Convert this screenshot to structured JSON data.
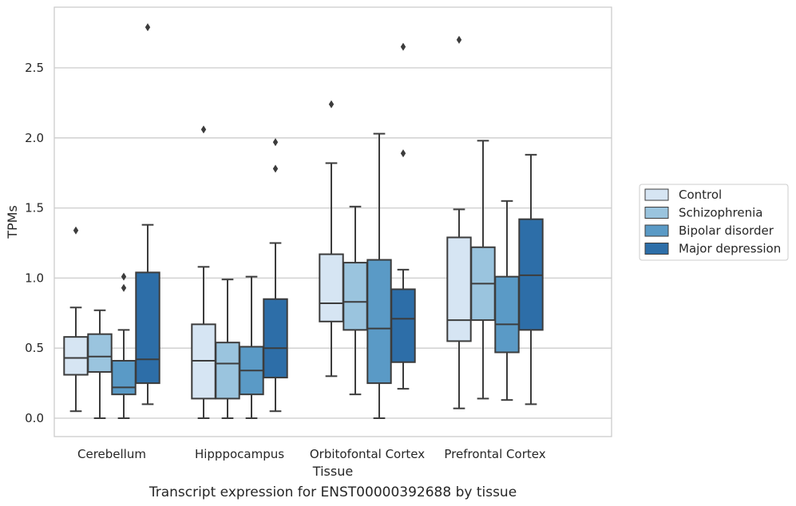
{
  "caption": "Transcript expression for ENST00000392688 by tissue",
  "chart_data": {
    "type": "boxplot",
    "xlabel": "Tissue",
    "ylabel": "TPMs",
    "ylim": [
      -0.13,
      2.95
    ],
    "yticks": [
      0.0,
      0.5,
      1.0,
      1.5,
      2.0,
      2.5
    ],
    "ytick_labels": [
      "0.0",
      "0.5",
      "1.0",
      "1.5",
      "2.0",
      "2.5"
    ],
    "grid": "horizontal",
    "legend_position": "right, outside plot",
    "categories": [
      "Cerebellum",
      "Hipppocampus",
      "Orbitofontal Cortex",
      "Prefrontal Cortex"
    ],
    "series": [
      {
        "name": "Control",
        "color": "#d6e5f3",
        "boxes": [
          {
            "whislo": 0.05,
            "q1": 0.31,
            "med": 0.43,
            "q3": 0.58,
            "whishi": 0.79,
            "fliers": [
              1.34
            ]
          },
          {
            "whislo": 0.0,
            "q1": 0.14,
            "med": 0.41,
            "q3": 0.67,
            "whishi": 1.08,
            "fliers": [
              2.06
            ]
          },
          {
            "whislo": 0.3,
            "q1": 0.69,
            "med": 0.82,
            "q3": 1.17,
            "whishi": 1.82,
            "fliers": [
              2.24
            ]
          },
          {
            "whislo": 0.07,
            "q1": 0.55,
            "med": 0.7,
            "q3": 1.29,
            "whishi": 1.49,
            "fliers": [
              2.7
            ]
          }
        ]
      },
      {
        "name": "Schizophrenia",
        "color": "#9ac4de",
        "boxes": [
          {
            "whislo": 0.0,
            "q1": 0.33,
            "med": 0.44,
            "q3": 0.6,
            "whishi": 0.77,
            "fliers": []
          },
          {
            "whislo": 0.0,
            "q1": 0.14,
            "med": 0.39,
            "q3": 0.54,
            "whishi": 0.99,
            "fliers": []
          },
          {
            "whislo": 0.17,
            "q1": 0.63,
            "med": 0.83,
            "q3": 1.11,
            "whishi": 1.51,
            "fliers": []
          },
          {
            "whislo": 0.14,
            "q1": 0.7,
            "med": 0.96,
            "q3": 1.22,
            "whishi": 1.98,
            "fliers": []
          }
        ]
      },
      {
        "name": "Bipolar disorder",
        "color": "#5a9ac6",
        "boxes": [
          {
            "whislo": 0.0,
            "q1": 0.17,
            "med": 0.22,
            "q3": 0.41,
            "whishi": 0.63,
            "fliers": [
              0.93,
              1.01
            ]
          },
          {
            "whislo": 0.0,
            "q1": 0.17,
            "med": 0.34,
            "q3": 0.51,
            "whishi": 1.01,
            "fliers": []
          },
          {
            "whislo": 0.0,
            "q1": 0.25,
            "med": 0.64,
            "q3": 1.13,
            "whishi": 2.03,
            "fliers": []
          },
          {
            "whislo": 0.13,
            "q1": 0.47,
            "med": 0.67,
            "q3": 1.01,
            "whishi": 1.55,
            "fliers": []
          }
        ]
      },
      {
        "name": "Major depression",
        "color": "#2d6ea8",
        "boxes": [
          {
            "whislo": 0.1,
            "q1": 0.25,
            "med": 0.42,
            "q3": 1.04,
            "whishi": 1.38,
            "fliers": [
              2.79
            ]
          },
          {
            "whislo": 0.05,
            "q1": 0.29,
            "med": 0.5,
            "q3": 0.85,
            "whishi": 1.25,
            "fliers": [
              1.78,
              1.97
            ]
          },
          {
            "whislo": 0.21,
            "q1": 0.4,
            "med": 0.71,
            "q3": 0.92,
            "whishi": 1.06,
            "fliers": [
              1.89,
              2.65
            ]
          },
          {
            "whislo": 0.1,
            "q1": 0.63,
            "med": 1.02,
            "q3": 1.42,
            "whishi": 1.88,
            "fliers": []
          }
        ]
      }
    ]
  }
}
